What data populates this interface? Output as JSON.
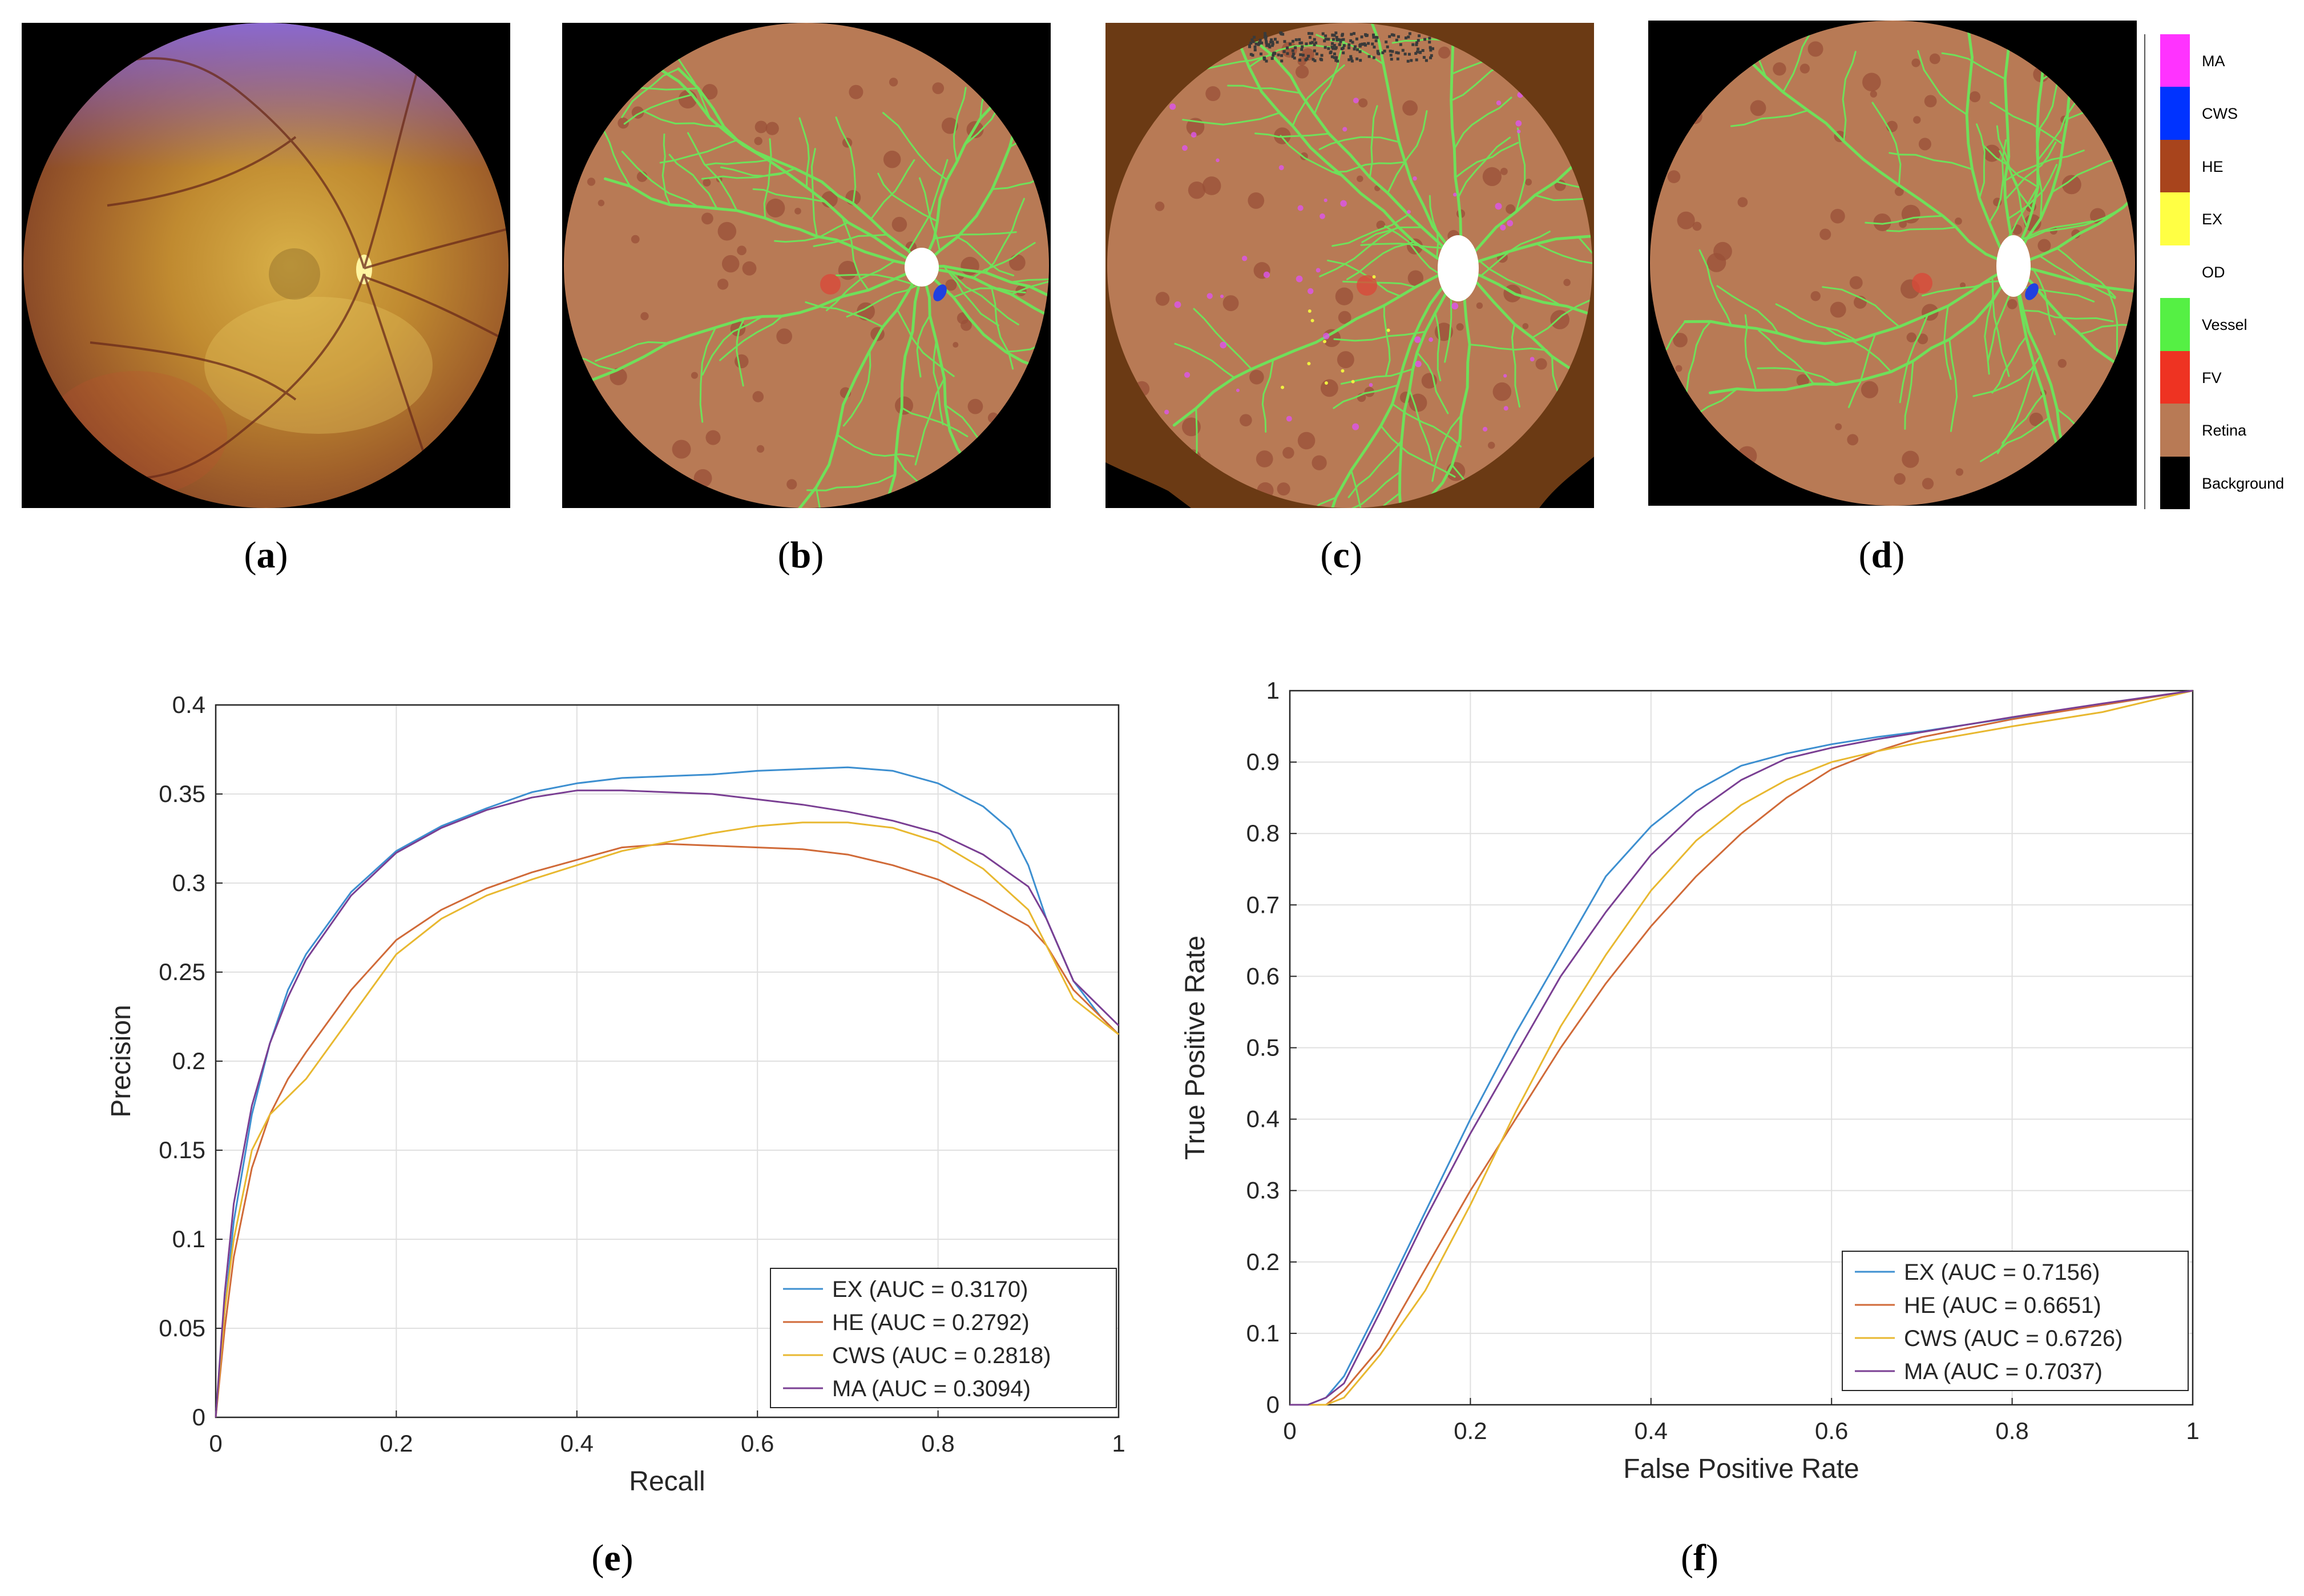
{
  "captions": {
    "a": {
      "pre": "(",
      "letter": "a",
      "post": ")"
    },
    "b": {
      "pre": "(",
      "letter": "b",
      "post": ")"
    },
    "c": {
      "pre": "(",
      "letter": "c",
      "post": ")"
    },
    "d": {
      "pre": "(",
      "letter": "d",
      "post": ")"
    },
    "e": {
      "pre": "(",
      "letter": "e",
      "post": ")"
    },
    "f": {
      "pre": "(",
      "letter": "f",
      "post": ")"
    }
  },
  "colors": {
    "retina": "#b87a55",
    "vessel": "#6fe05a",
    "fundus_center": "#c9a23a",
    "fundus_edge": "#8a5a20",
    "ex": "#3d8fd0",
    "he": "#d06a38",
    "cws": "#e8b830",
    "ma": "#7a3f93"
  },
  "legend_labels": [
    {
      "label": "MA",
      "color": "#ff33ff"
    },
    {
      "label": "CWS",
      "color": "#0033ff"
    },
    {
      "label": "HE",
      "color": "#a8441c"
    },
    {
      "label": "EX",
      "color": "#ffff44"
    },
    {
      "label": "OD",
      "color": "#ffffff"
    },
    {
      "label": "Vessel",
      "color": "#55f044"
    },
    {
      "label": "FV",
      "color": "#ee3322"
    },
    {
      "label": "Retina",
      "color": "#b87a55"
    },
    {
      "label": "Background",
      "color": "#000000"
    }
  ],
  "chart_data": [
    {
      "type": "line",
      "title": "",
      "xlabel": "Recall",
      "ylabel": "Precision",
      "xlim": [
        0,
        1
      ],
      "ylim": [
        0,
        0.4
      ],
      "xticks": [
        "0",
        "0.2",
        "0.4",
        "0.6",
        "0.8",
        "1"
      ],
      "yticks": [
        "0",
        "0.05",
        "0.1",
        "0.15",
        "0.2",
        "0.25",
        "0.3",
        "0.35",
        "0.4"
      ],
      "grid": true,
      "legend_position": "bottom-right",
      "series": [
        {
          "name": "EX (AUC = 0.3170)",
          "color": "#3d8fd0",
          "x": [
            0,
            0.01,
            0.02,
            0.04,
            0.06,
            0.08,
            0.1,
            0.15,
            0.2,
            0.25,
            0.3,
            0.35,
            0.4,
            0.45,
            0.5,
            0.55,
            0.6,
            0.65,
            0.7,
            0.75,
            0.8,
            0.85,
            0.88,
            0.9,
            0.92,
            0.95,
            0.98,
            1.0
          ],
          "y": [
            0,
            0.06,
            0.11,
            0.17,
            0.21,
            0.24,
            0.26,
            0.295,
            0.318,
            0.332,
            0.342,
            0.351,
            0.356,
            0.359,
            0.36,
            0.361,
            0.363,
            0.364,
            0.365,
            0.363,
            0.356,
            0.343,
            0.33,
            0.31,
            0.28,
            0.245,
            0.225,
            0.215
          ]
        },
        {
          "name": "HE (AUC = 0.2792)",
          "color": "#d06a38",
          "x": [
            0,
            0.01,
            0.02,
            0.04,
            0.06,
            0.08,
            0.1,
            0.15,
            0.2,
            0.25,
            0.3,
            0.35,
            0.4,
            0.45,
            0.5,
            0.55,
            0.6,
            0.65,
            0.7,
            0.75,
            0.8,
            0.85,
            0.9,
            0.92,
            0.95,
            1.0
          ],
          "y": [
            0,
            0.05,
            0.09,
            0.14,
            0.17,
            0.19,
            0.205,
            0.24,
            0.268,
            0.285,
            0.297,
            0.306,
            0.313,
            0.32,
            0.322,
            0.321,
            0.32,
            0.319,
            0.316,
            0.31,
            0.302,
            0.29,
            0.276,
            0.265,
            0.24,
            0.215
          ]
        },
        {
          "name": "CWS (AUC = 0.2818)",
          "color": "#e8b830",
          "x": [
            0,
            0.01,
            0.02,
            0.04,
            0.06,
            0.08,
            0.1,
            0.15,
            0.2,
            0.25,
            0.3,
            0.35,
            0.4,
            0.45,
            0.5,
            0.55,
            0.6,
            0.65,
            0.7,
            0.75,
            0.8,
            0.85,
            0.9,
            0.92,
            0.95,
            1.0
          ],
          "y": [
            0,
            0.06,
            0.1,
            0.15,
            0.17,
            0.18,
            0.19,
            0.225,
            0.26,
            0.28,
            0.293,
            0.302,
            0.31,
            0.318,
            0.323,
            0.328,
            0.332,
            0.334,
            0.334,
            0.331,
            0.323,
            0.308,
            0.285,
            0.265,
            0.235,
            0.215
          ]
        },
        {
          "name": "MA (AUC = 0.3094)",
          "color": "#7a3f93",
          "x": [
            0,
            0.01,
            0.02,
            0.04,
            0.06,
            0.08,
            0.1,
            0.15,
            0.2,
            0.25,
            0.3,
            0.35,
            0.4,
            0.45,
            0.5,
            0.55,
            0.6,
            0.65,
            0.7,
            0.75,
            0.8,
            0.85,
            0.9,
            0.92,
            0.95,
            1.0
          ],
          "y": [
            0,
            0.07,
            0.12,
            0.175,
            0.21,
            0.236,
            0.257,
            0.293,
            0.317,
            0.331,
            0.341,
            0.348,
            0.352,
            0.352,
            0.351,
            0.35,
            0.347,
            0.344,
            0.34,
            0.335,
            0.328,
            0.316,
            0.298,
            0.28,
            0.245,
            0.22
          ]
        }
      ]
    },
    {
      "type": "line",
      "title": "",
      "xlabel": "False Positive Rate",
      "ylabel": "True Positive Rate",
      "xlim": [
        0,
        1
      ],
      "ylim": [
        0,
        1
      ],
      "xticks": [
        "0",
        "0.2",
        "0.4",
        "0.6",
        "0.8",
        "1"
      ],
      "yticks": [
        "0",
        "0.1",
        "0.2",
        "0.3",
        "0.4",
        "0.5",
        "0.6",
        "0.7",
        "0.8",
        "0.9",
        "1"
      ],
      "grid": true,
      "legend_position": "bottom-right",
      "series": [
        {
          "name": "EX (AUC = 0.7156)",
          "color": "#3d8fd0",
          "x": [
            0,
            0.02,
            0.04,
            0.06,
            0.08,
            0.1,
            0.15,
            0.2,
            0.25,
            0.3,
            0.35,
            0.4,
            0.45,
            0.5,
            0.55,
            0.6,
            0.65,
            0.7,
            0.8,
            0.9,
            1.0
          ],
          "y": [
            0,
            0.0,
            0.01,
            0.04,
            0.09,
            0.14,
            0.27,
            0.4,
            0.52,
            0.63,
            0.74,
            0.81,
            0.86,
            0.895,
            0.912,
            0.925,
            0.935,
            0.943,
            0.962,
            0.98,
            1.0
          ]
        },
        {
          "name": "HE (AUC = 0.6651)",
          "color": "#d06a38",
          "x": [
            0,
            0.02,
            0.04,
            0.06,
            0.08,
            0.1,
            0.15,
            0.2,
            0.25,
            0.3,
            0.35,
            0.4,
            0.45,
            0.5,
            0.55,
            0.6,
            0.65,
            0.7,
            0.8,
            0.9,
            1.0
          ],
          "y": [
            0,
            0.0,
            0.0,
            0.02,
            0.05,
            0.08,
            0.19,
            0.3,
            0.4,
            0.5,
            0.59,
            0.67,
            0.74,
            0.8,
            0.85,
            0.89,
            0.915,
            0.935,
            0.96,
            0.98,
            1.0
          ]
        },
        {
          "name": "CWS (AUC = 0.6726)",
          "color": "#e8b830",
          "x": [
            0,
            0.02,
            0.04,
            0.06,
            0.08,
            0.1,
            0.15,
            0.2,
            0.25,
            0.3,
            0.35,
            0.4,
            0.45,
            0.5,
            0.55,
            0.6,
            0.65,
            0.7,
            0.8,
            0.9,
            1.0
          ],
          "y": [
            0,
            0.0,
            0.0,
            0.01,
            0.04,
            0.07,
            0.16,
            0.28,
            0.41,
            0.53,
            0.63,
            0.72,
            0.79,
            0.84,
            0.875,
            0.9,
            0.915,
            0.928,
            0.95,
            0.97,
            1.0
          ]
        },
        {
          "name": "MA (AUC = 0.7037)",
          "color": "#7a3f93",
          "x": [
            0,
            0.02,
            0.04,
            0.06,
            0.08,
            0.1,
            0.15,
            0.2,
            0.25,
            0.3,
            0.35,
            0.4,
            0.45,
            0.5,
            0.55,
            0.6,
            0.65,
            0.7,
            0.8,
            0.9,
            1.0
          ],
          "y": [
            0,
            0.0,
            0.01,
            0.03,
            0.08,
            0.13,
            0.26,
            0.38,
            0.49,
            0.6,
            0.69,
            0.77,
            0.83,
            0.875,
            0.905,
            0.92,
            0.932,
            0.942,
            0.963,
            0.982,
            1.0
          ]
        }
      ]
    }
  ]
}
